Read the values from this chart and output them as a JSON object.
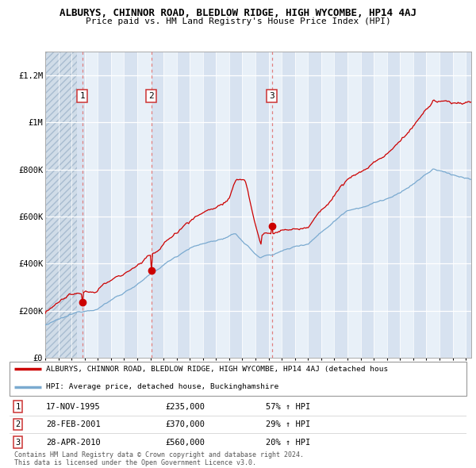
{
  "title": "ALBURYS, CHINNOR ROAD, BLEDLOW RIDGE, HIGH WYCOMBE, HP14 4AJ",
  "subtitle": "Price paid vs. HM Land Registry's House Price Index (HPI)",
  "bg_color": "#e8f0f8",
  "hatch_bg": "#d0dce8",
  "grid_color": "#ffffff",
  "red_line_color": "#cc0000",
  "blue_line_color": "#7aaad0",
  "vline_color": "#e08080",
  "ylim": [
    0,
    1300000
  ],
  "yticks": [
    0,
    200000,
    400000,
    600000,
    800000,
    1000000,
    1200000
  ],
  "ytick_labels": [
    "£0",
    "£200K",
    "£400K",
    "£600K",
    "£800K",
    "£1M",
    "£1.2M"
  ],
  "sale_prices": [
    235000,
    370000,
    560000
  ],
  "sale_labels": [
    "1",
    "2",
    "3"
  ],
  "sale_info": [
    {
      "num": "1",
      "date": "17-NOV-1995",
      "price": "£235,000",
      "pct": "57% ↑ HPI"
    },
    {
      "num": "2",
      "date": "28-FEB-2001",
      "price": "£370,000",
      "pct": "29% ↑ HPI"
    },
    {
      "num": "3",
      "date": "28-APR-2010",
      "price": "£560,000",
      "pct": "20% ↑ HPI"
    }
  ],
  "legend_red": "ALBURYS, CHINNOR ROAD, BLEDLOW RIDGE, HIGH WYCOMBE, HP14 4AJ (detached hous",
  "legend_blue": "HPI: Average price, detached house, Buckinghamshire",
  "footer": "Contains HM Land Registry data © Crown copyright and database right 2024.\nThis data is licensed under the Open Government Licence v3.0."
}
